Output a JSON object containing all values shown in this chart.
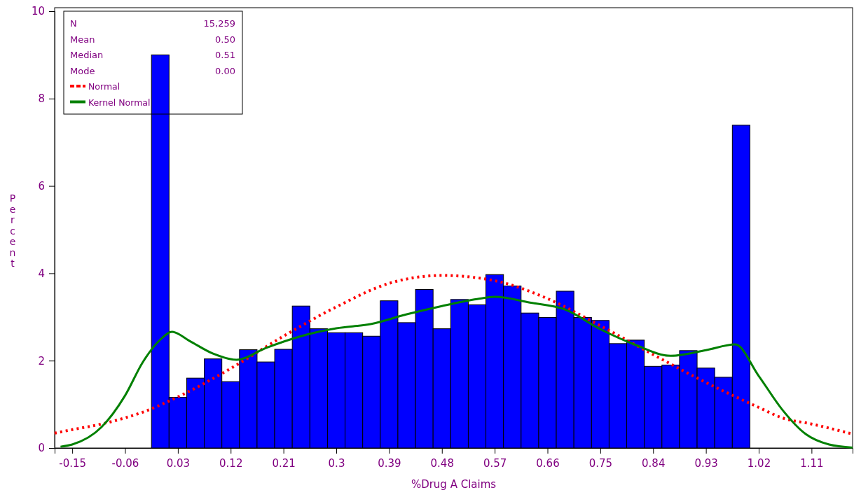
{
  "chart_data": {
    "type": "histogram",
    "xlabel": "%Drug A Claims",
    "ylabel": "Percent",
    "bins": [
      -0.015,
      0.015,
      0.045,
      0.075,
      0.105,
      0.135,
      0.165,
      0.195,
      0.225,
      0.255,
      0.285,
      0.315,
      0.345,
      0.375,
      0.405,
      0.435,
      0.465,
      0.495,
      0.525,
      0.555,
      0.585,
      0.615,
      0.645,
      0.675,
      0.705,
      0.735,
      0.765,
      0.795,
      0.825,
      0.855,
      0.885,
      0.915,
      0.945,
      0.975,
      1.005
    ],
    "values": [
      9.0,
      1.16,
      1.6,
      2.04,
      1.52,
      2.25,
      1.97,
      2.26,
      3.25,
      2.73,
      2.64,
      2.64,
      2.56,
      3.37,
      2.87,
      3.63,
      2.73,
      3.4,
      3.28,
      3.97,
      3.71,
      3.09,
      2.99,
      3.59,
      2.99,
      2.92,
      2.39,
      2.47,
      1.87,
      1.9,
      2.23,
      1.83,
      1.62,
      7.39
    ],
    "color": "#0000ff",
    "series": [
      {
        "type": "line",
        "name": "Normal",
        "color": "#ff0000",
        "line_style": "dotted",
        "x": [
          -0.18,
          -0.15,
          -0.1,
          -0.06,
          -0.03,
          0.03,
          0.12,
          0.21,
          0.3,
          0.39,
          0.48,
          0.57,
          0.66,
          0.75,
          0.84,
          0.93,
          1.02,
          1.06,
          1.11,
          1.18
        ],
        "values": [
          0.34,
          0.42,
          0.55,
          0.69,
          0.82,
          1.17,
          1.82,
          2.56,
          3.23,
          3.77,
          3.95,
          3.83,
          3.42,
          2.8,
          2.14,
          1.5,
          0.93,
          0.69,
          0.55,
          0.32
        ]
      },
      {
        "type": "line",
        "name": "Kernel Normal",
        "color": "#008000",
        "line_style": "solid",
        "x": [
          -0.17,
          -0.15,
          -0.1,
          -0.06,
          -0.03,
          0.0,
          0.02,
          0.05,
          0.09,
          0.13,
          0.18,
          0.24,
          0.3,
          0.36,
          0.42,
          0.48,
          0.54,
          0.57,
          0.63,
          0.69,
          0.75,
          0.81,
          0.87,
          0.93,
          0.98,
          1.02,
          1.06,
          1.1,
          1.14,
          1.18
        ],
        "values": [
          0.03,
          0.08,
          0.48,
          1.2,
          1.96,
          2.48,
          2.66,
          2.45,
          2.16,
          2.02,
          2.29,
          2.56,
          2.74,
          2.84,
          3.06,
          3.25,
          3.41,
          3.46,
          3.33,
          3.17,
          2.72,
          2.36,
          2.11,
          2.24,
          2.37,
          1.65,
          0.88,
          0.32,
          0.08,
          0.01
        ]
      }
    ],
    "xlim": [
      -0.18,
      1.18
    ],
    "xticks": [
      -0.15,
      -0.06,
      0.03,
      0.12,
      0.21,
      0.3,
      0.39,
      0.48,
      0.57,
      0.66,
      0.75,
      0.84,
      0.93,
      1.02,
      1.11
    ],
    "ylim": [
      0,
      10
    ],
    "yticks": [
      0,
      2,
      4,
      6,
      8,
      10
    ],
    "grid": false,
    "legend": "top left",
    "annotations": [
      "N",
      "15,259",
      "Mean",
      "0.50",
      "Median",
      "0.51",
      "Mode",
      "0.00"
    ]
  }
}
